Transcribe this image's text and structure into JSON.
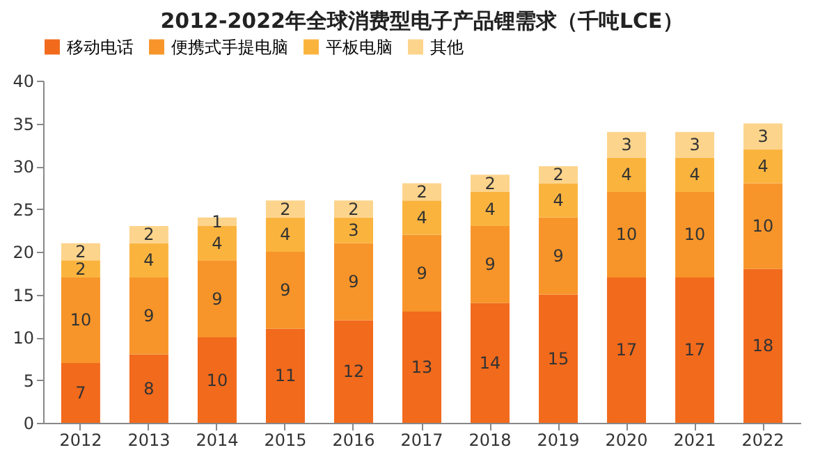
{
  "chart_data": {
    "type": "bar",
    "title": "2012-2022年全球消费型电子产品锂需求（千吨LCE）",
    "categories": [
      "2012",
      "2013",
      "2014",
      "2015",
      "2016",
      "2017",
      "2018",
      "2019",
      "2020",
      "2021",
      "2022"
    ],
    "series": [
      {
        "name": "移动电话",
        "color": "#f26a1c",
        "values": [
          7,
          8,
          10,
          11,
          12,
          13,
          14,
          15,
          17,
          17,
          18
        ]
      },
      {
        "name": "便携式手提电脑",
        "color": "#f7952a",
        "values": [
          10,
          9,
          9,
          9,
          9,
          9,
          9,
          9,
          10,
          10,
          10
        ]
      },
      {
        "name": "平板电脑",
        "color": "#fab43e",
        "values": [
          2,
          4,
          4,
          4,
          3,
          4,
          4,
          4,
          4,
          4,
          4
        ]
      },
      {
        "name": "其他",
        "color": "#fdd48c",
        "values": [
          2,
          2,
          1,
          2,
          2,
          2,
          2,
          2,
          3,
          3,
          3
        ]
      }
    ],
    "stacked": true,
    "ylim": [
      0,
      40
    ],
    "yticks": [
      0,
      5,
      10,
      15,
      20,
      25,
      30,
      35,
      40
    ],
    "grid": false,
    "legend": "top",
    "data_labels": true
  }
}
